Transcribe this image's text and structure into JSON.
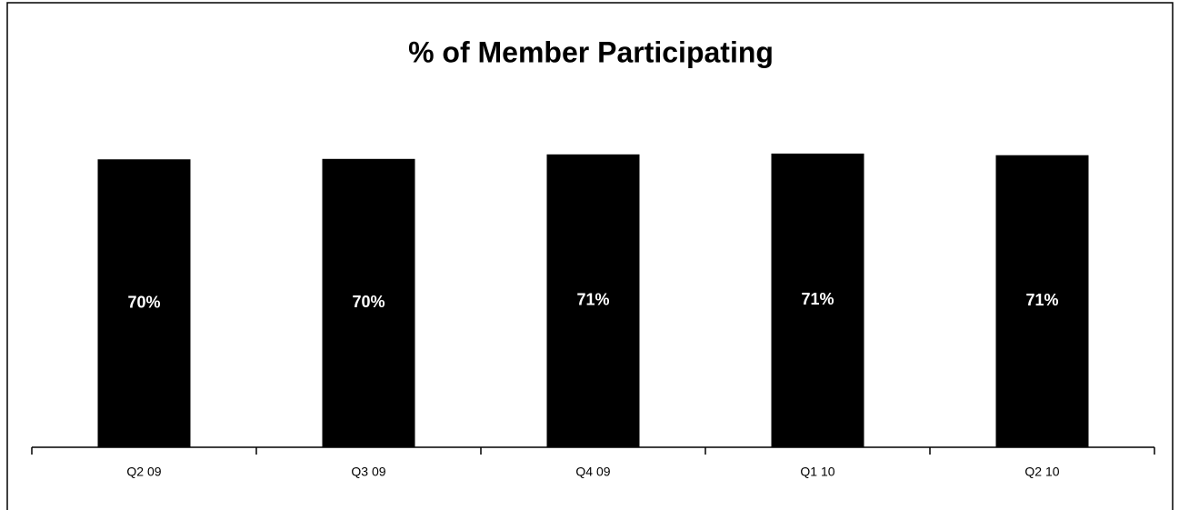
{
  "chart_data": {
    "type": "bar",
    "title": "% of Member Participating",
    "categories": [
      "Q2 09",
      "Q3 09",
      "Q4 09",
      "Q1 10",
      "Q2 10"
    ],
    "values": [
      70.0,
      70.1,
      71.2,
      71.4,
      71.0
    ],
    "value_labels": [
      "70%",
      "70%",
      "71%",
      "71%",
      "71%"
    ],
    "color": "#000000",
    "ylim": [
      0,
      80
    ],
    "grid": false
  }
}
